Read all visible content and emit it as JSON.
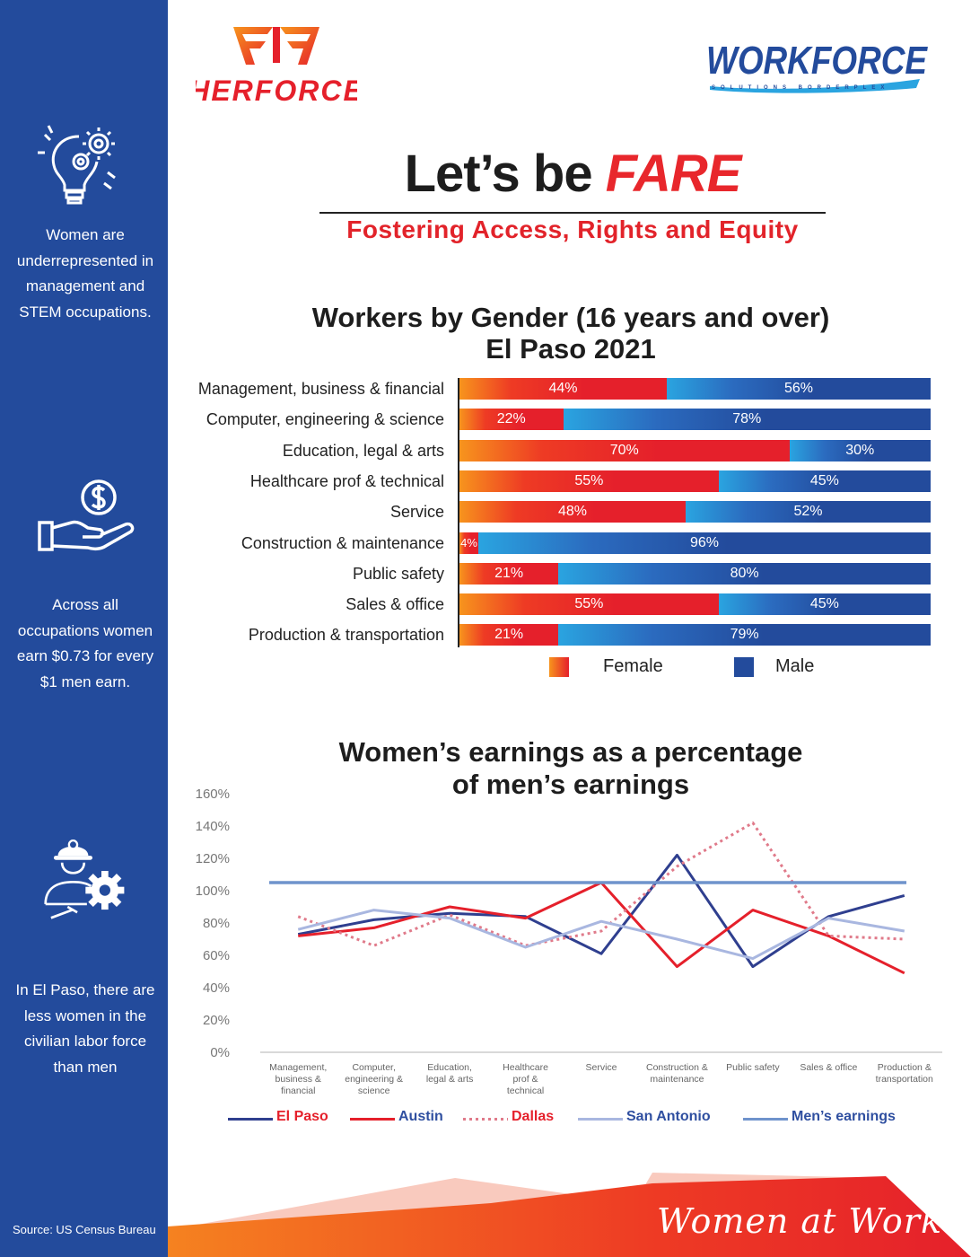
{
  "sidebar": {
    "facts": [
      "Women are underrepresented in management and STEM occupations.",
      "Across all occupations women earn $0.73 for every $1 men earn.",
      "In El Paso, there are less women in the civilian labor force than men"
    ],
    "icons": [
      "lightbulb-gears-icon",
      "hand-dollar-icon",
      "worker-gear-icon"
    ],
    "source": "Source: US Census Bureau"
  },
  "logos": {
    "left": "HERFORCE",
    "right": "WORKFORCE",
    "right_tagline": "SOLUTIONS BORDERPLEX"
  },
  "header": {
    "title_prefix": "Let’s be",
    "title_emphasis": "FARE",
    "subtitle": "Fostering Access, Rights and Equity"
  },
  "colors": {
    "sidebar_blue": "#234b9c",
    "female_red": "#e5202b",
    "female_orange": "#f7941d",
    "male_blue": "#234b9c",
    "male_light": "#2aa4e0",
    "el_paso": "#2f3f8f",
    "austin": "#e5202b",
    "dallas": "#e07a8a",
    "san_antonio": "#a9b7e0",
    "mens_earnings": "#6f93cc"
  },
  "chart_data": [
    {
      "type": "bar",
      "orientation": "horizontal-stacked",
      "title": "Workers by Gender (16 years and over)",
      "subtitle": "El Paso 2021",
      "categories": [
        "Management, business & financial",
        "Computer, engineering & science",
        "Education, legal & arts",
        "Healthcare prof & technical",
        "Service",
        "Construction & maintenance",
        "Public safety",
        "Sales & office",
        "Production & transportation"
      ],
      "series": [
        {
          "name": "Female",
          "values": [
            44,
            22,
            70,
            55,
            48,
            4,
            21,
            55,
            21
          ],
          "labels": [
            "44%",
            "22%",
            "70%",
            "55%",
            "48%",
            "4%",
            "21%",
            "55%",
            "21%"
          ]
        },
        {
          "name": "Male",
          "values": [
            56,
            78,
            30,
            45,
            52,
            96,
            80,
            45,
            79
          ],
          "labels": [
            "56%",
            "78%",
            "30%",
            "45%",
            "52%",
            "96%",
            "80%",
            "45%",
            "79%"
          ]
        }
      ],
      "legend_position": "bottom"
    },
    {
      "type": "line",
      "title": "Women’s earnings as a percentage of men’s earnings",
      "categories": [
        "Management, business & financial",
        "Computer, engineering & science",
        "Education, legal & arts",
        "Healthcare prof & technical",
        "Service",
        "Construction & maintenance",
        "Public safety",
        "Sales & office",
        "Production & transportation"
      ],
      "y_ticks": [
        "0%",
        "20%",
        "40%",
        "60%",
        "80%",
        "100%",
        "120%",
        "140%",
        "160%"
      ],
      "ylim": [
        0,
        160
      ],
      "series": [
        {
          "name": "El Paso",
          "values": [
            73,
            82,
            86,
            84,
            61,
            122,
            53,
            84,
            97
          ],
          "color": "#2f3f8f",
          "dash": "solid"
        },
        {
          "name": "Austin",
          "values": [
            72,
            77,
            90,
            83,
            105,
            53,
            88,
            72,
            49
          ],
          "color": "#e5202b",
          "dash": "solid"
        },
        {
          "name": "Dallas",
          "values": [
            84,
            66,
            85,
            66,
            75,
            115,
            142,
            72,
            70
          ],
          "color": "#e07a8a",
          "dash": "dotted"
        },
        {
          "name": "San Antonio",
          "values": [
            76,
            88,
            83,
            65,
            81,
            70,
            58,
            83,
            75
          ],
          "color": "#a9b7e0",
          "dash": "solid"
        },
        {
          "name": "Men’s earnings",
          "values": [
            105,
            105,
            105,
            105,
            105,
            105,
            105,
            105,
            105
          ],
          "color": "#6f93cc",
          "dash": "solid"
        }
      ],
      "grid": false,
      "legend_position": "bottom"
    }
  ],
  "footer": {
    "tagline": "Women at Work"
  }
}
